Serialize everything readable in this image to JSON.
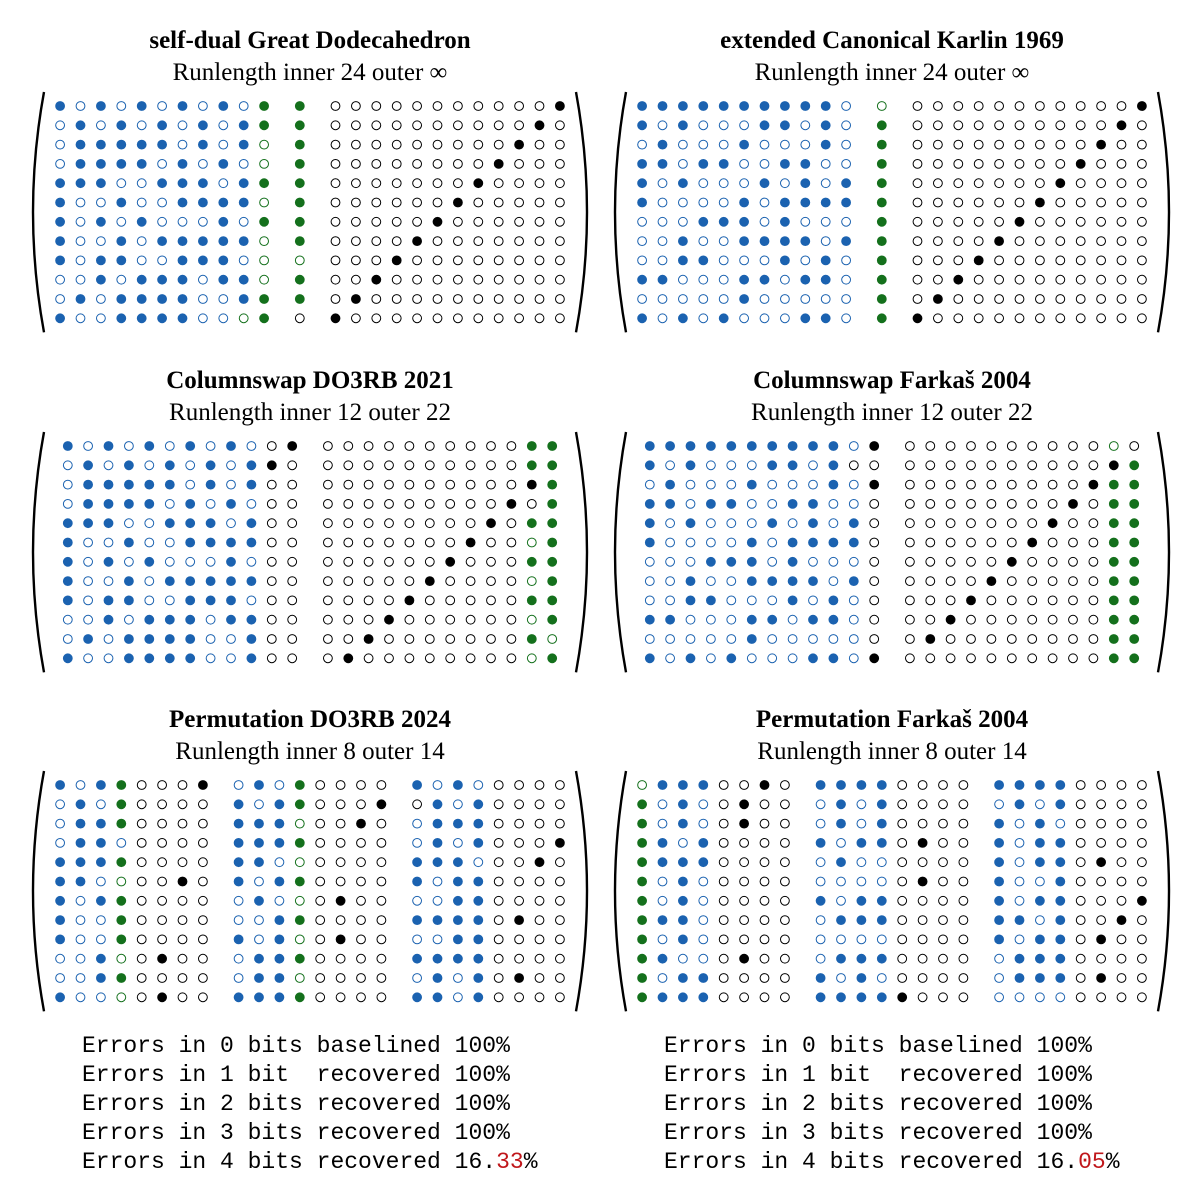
{
  "colors": {
    "data_bit": "#1b62b0",
    "check_bit": "#14701c",
    "identity_bit": "#000000",
    "highlight": "#c0171b"
  },
  "panels": [
    {
      "title": "self-dual Great Dodecahedron",
      "subtitle": "Runlength inner 24 outer ∞",
      "groups": [
        11,
        1,
        12
      ],
      "rows": [
        "BbBbBbBbBbGG00000000000K",
        "bBbBbBbBbBGG0000000000K0",
        "bBBBBBbBbBgG000000000K00",
        "bBBBBbBbBbgG00000000K000",
        "BBBbbBBBbBGG0000000K0000",
        "BbbBbbBBBBgG000000K00000",
        "BbBbBbbbBbGG00000K000000",
        "BbbBbBBBBBgG0000K0000000",
        "BbBBbbBBBbgg000K00000000",
        "bbBbBBBbBBgG00K000000000",
        "bBbBBBBbbBGG0K0000000000",
        "BbbBBBBbbgG0K00000000000"
      ]
    },
    {
      "title": "extended Canonical Karlin 1969",
      "subtitle": "Runlength inner 24 outer ∞",
      "groups": [
        11,
        1,
        12
      ],
      "rows": [
        "BBBBBBBBBBbg00000000000K",
        "BbBbbbBBbBbG0000000000K0",
        "bBbbbBbbbBbG000000000K00",
        "BBbBBbbBBbbG00000000K000",
        "BbBbbbBbBbBG0000000K0000",
        "BbbbbBbBBBBG000000K00000",
        "bbbBBBbBbbbG00000K000000",
        "bbBbbBBBBbBG0000K0000000",
        "bbBBbbbBbBbG000K00000000",
        "BBbbbBBbBBbG00K000000000",
        "bbbbbBbbbbbG0K0000000000",
        "BbBbBbbbBBbGK00000000000"
      ]
    },
    {
      "title": "Columnswap DO3RB 2021",
      "subtitle": "Runlength inner 12 outer 22",
      "groups": [
        12,
        12
      ],
      "rows": [
        "BbBbBbBbBb0K0000000000GG",
        "bBbBbBbBbBK00000000000GG",
        "bBBBBBbBbB000000000000KG",
        "bBBBBbBbBb00000000000K0G",
        "BBBbbBBBbB0000000000K0GG",
        "BbbBbbBBBB000000000K00gG",
        "BbBbBbbbBb00000000K000GG",
        "BbbBbBBBBB0000000K0000gG",
        "BbBBbbBBBb000000K00000GG",
        "bbBbBBBbBB00000K000000gG",
        "bBbBBBBbbB0000K0000000Gg",
        "BbbBBBBbbB000K00000000gG"
      ]
    },
    {
      "title": "Columnswap Farkaš 2004",
      "subtitle": "Runlength inner 12 outer 22",
      "groups": [
        12,
        12
      ],
      "rows": [
        "BBBBBBBBBBbK0000000000g0",
        "BbBbbbBBbB000000000000KG",
        "bBbbbBbbbBbK000000000KGG",
        "BBbBBbbBBbb000000000K0GG",
        "BbBbbbBbBbB00000000K00GG",
        "BbbbbBbBBBB0000000K000GG",
        "bbbBBBbBbbb000000K0000GG",
        "bbBbbBBBBbB00000K00000GG",
        "bbBBbbbBbBb0000K000000GG",
        "BBbbbBBbBBb000K0000000GG",
        "bbbbbBbbbbb00K00000000GG",
        "BbBbBbbbBBbK0000000000GG"
      ]
    },
    {
      "title": "Permutation DO3RB 2024",
      "subtitle": "Runlength inner 8 outer 14",
      "groups": [
        8,
        8,
        8
      ],
      "rows": [
        "BbBG000KbBbG0000BbBb0000",
        "bBbG0000BbBG000K0BbB0000",
        "bBBG0000BBBg00K0bBBB0000",
        "bBBb0000BBBG0000bBbB000K",
        "BBBG0000BBbg0000BBBb00K0",
        "BBbg00K0BbBG0000BbBB0000",
        "BbBG0000bBbg0K00bbBB0000",
        "BbbG0000bbBG0000BBBB0K00",
        "BbbG0000BbBg0K00bbBB0000",
        "bbBg0K00bBBG0000BBBB0000",
        "bbBG0000bBBg0000bBbB0K00",
        "Bbbg0K00BBBG0000BBbB0000"
      ]
    },
    {
      "title": "Permutation Farkaš 2004",
      "subtitle": "Runlength inner 8 outer 14",
      "groups": [
        8,
        8,
        8
      ],
      "rows": [
        "gBBB00K0BBBB0000BBBB0000",
        "GbBb0K00bBbB0000bBbB0000",
        "GbBb0K00bBbB0000BbBb0000",
        "GBbB0000BbBB0K00BbBB0000",
        "GBBB0000bBbb0000BbBB0K00",
        "GbBb0000bbbb0K00BbbB0000",
        "GbBb0000BbBB0000BbBB000K",
        "GBBb0000bBBB0000BBbB00K0",
        "GbBb0000bbbb0000BbBB0K00",
        "GBbb0K00bBBB0000bBBB0000",
        "GbBB0000BbBb0000bBBB0K00",
        "GBBB0000BBBBK000bbbb0000"
      ]
    }
  ],
  "stats": [
    {
      "lines": [
        {
          "text": "Errors in 0 bits baselined 100",
          "pct": "%"
        },
        {
          "text": "Errors in 1 bit  recovered 100",
          "pct": "%"
        },
        {
          "text": "Errors in 2 bits recovered 100",
          "pct": "%"
        },
        {
          "text": "Errors in 3 bits recovered 100",
          "pct": "%"
        },
        {
          "text": "Errors in 4 bits recovered 16.",
          "highlight": "33",
          "pct": "%"
        }
      ]
    },
    {
      "lines": [
        {
          "text": "Errors in 0 bits baselined 100",
          "pct": "%"
        },
        {
          "text": "Errors in 1 bit  recovered 100",
          "pct": "%"
        },
        {
          "text": "Errors in 2 bits recovered 100",
          "pct": "%"
        },
        {
          "text": "Errors in 3 bits recovered 100",
          "pct": "%"
        },
        {
          "text": "Errors in 4 bits recovered 16.",
          "highlight": "05",
          "pct": "%"
        }
      ]
    }
  ]
}
